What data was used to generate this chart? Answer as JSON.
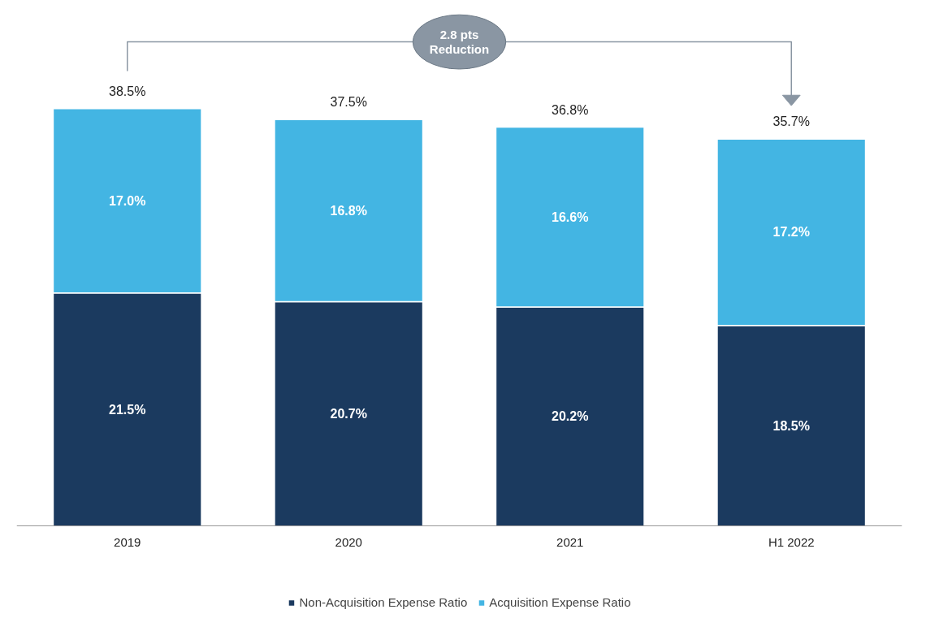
{
  "chart_data": {
    "type": "bar",
    "stacked": true,
    "categories": [
      "2019",
      "2020",
      "2021",
      "H1 2022"
    ],
    "series": [
      {
        "name": "Non-Acquisition Expense Ratio",
        "color": "#1b3a5f",
        "values": [
          21.5,
          20.7,
          20.2,
          18.5
        ],
        "value_labels": [
          "21.5%",
          "20.7%",
          "20.2%",
          "18.5%"
        ]
      },
      {
        "name": "Acquisition Expense Ratio",
        "color": "#43b5e3",
        "values": [
          17.0,
          16.8,
          16.6,
          17.2
        ],
        "value_labels": [
          "17.0%",
          "16.8%",
          "16.6%",
          "17.2%"
        ]
      }
    ],
    "totals": [
      "38.5%",
      "37.5%",
      "36.8%",
      "35.7%"
    ],
    "annotations": [
      "2.8 pts\nReduction"
    ],
    "legend": "bottom",
    "grid": false,
    "tick_labels": "x"
  }
}
